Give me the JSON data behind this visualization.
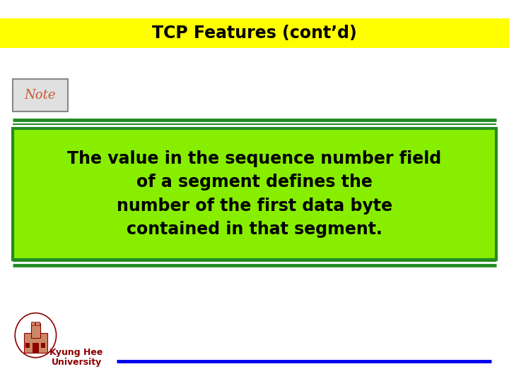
{
  "title": "TCP Features (cont’d)",
  "title_bg": "#FFFF00",
  "title_color": "#000000",
  "title_fontsize": 17,
  "note_label": "Note",
  "note_label_color": "#CC5533",
  "note_label_fontsize": 13,
  "separator_color": "#228B22",
  "main_box_bg": "#88EE00",
  "main_box_border": "#228B22",
  "main_text": "The value in the sequence number field\nof a segment defines the\nnumber of the first data byte\ncontained in that segment.",
  "main_text_color": "#000000",
  "main_text_fontsize": 17,
  "footer_text1": "Kyung Hee",
  "footer_text2": "University",
  "footer_text_color": "#8B0000",
  "footer_line_color": "#0000EE",
  "bg_color": "#FFFFFF"
}
